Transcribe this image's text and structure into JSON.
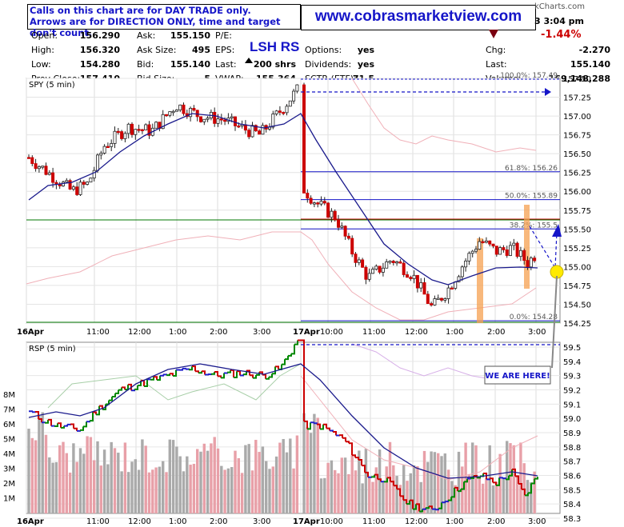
{
  "notice": {
    "line1": "Calls on this chart are for DAY TRADE only.",
    "line2": "Arrows are for DIRECTION ONLY, time and target don't count."
  },
  "site": "www.cobrasmarketview.com",
  "brand": "kCharts.com",
  "symbol": "LSH RS",
  "time": "3  3:04 pm",
  "change_pct": "-1.44%",
  "quote": {
    "col1": [
      {
        "label": "Open:",
        "value": "156.290"
      },
      {
        "label": "High:",
        "value": "156.320"
      },
      {
        "label": "Low:",
        "value": "154.280"
      },
      {
        "label": "Prev Close:",
        "value": "157.410"
      }
    ],
    "col2": [
      {
        "label": "Ask:",
        "value": "155.150"
      },
      {
        "label": "Ask Size:",
        "value": "495"
      },
      {
        "label": "Bid:",
        "value": "155.140"
      },
      {
        "label": "Bid Size:",
        "value": "5"
      }
    ],
    "col3": [
      {
        "label": "P/E:",
        "value": ""
      },
      {
        "label": "EPS:",
        "value": ""
      },
      {
        "label": "Last:",
        "value": "200 shrs"
      },
      {
        "label": "VWAP:",
        "value": "155.364"
      }
    ],
    "col4": [
      {
        "label": "Options:",
        "value": "yes"
      },
      {
        "label": "Dividends:",
        "value": "yes"
      },
      {
        "label": "SCTR (ETF):",
        "value": "71.5"
      }
    ],
    "col5": [
      {
        "label": "Chg:",
        "value": "-2.270"
      },
      {
        "label": "Last:",
        "value": "155.140"
      },
      {
        "label": "Volume:",
        "value": "169,148,288"
      }
    ]
  },
  "colors": {
    "up": "#008800",
    "down": "#cc0000",
    "ma": "#1a1a8c",
    "fib": "#1515c8",
    "orange": "#f5a050",
    "support": "#007700",
    "resist": "#bb0000"
  },
  "chart_data": [
    {
      "type": "candlestick",
      "title": "SPY (5 min)",
      "ylim": [
        154.25,
        157.5
      ],
      "yticks": [
        "157.50",
        "157.25",
        "157.00",
        "156.75",
        "156.50",
        "156.25",
        "156.00",
        "155.75",
        "155.50",
        "155.25",
        "155.00",
        "154.75",
        "154.50",
        "154.25"
      ],
      "xticks": [
        "16Apr",
        "11:00",
        "12:00",
        "1:00",
        "2:00",
        "3:00",
        "17Apr",
        "10:00",
        "11:00",
        "12:00",
        "1:00",
        "2:00",
        "3:00"
      ],
      "fib_levels": [
        {
          "label": "100.0%: 157.49",
          "value": 157.49
        },
        {
          "label": "61.8%: 156.26",
          "value": 156.26
        },
        {
          "label": "50.0%: 155.89",
          "value": 155.89
        },
        {
          "label": "38.2%: 155.5",
          "value": 155.5
        },
        {
          "label": "0.0%: 154.28",
          "value": 154.28
        }
      ],
      "support_line": 155.66,
      "resistance_line": 155.66,
      "annotation": "WE ARE HERE!"
    },
    {
      "type": "line",
      "title": "RSP (5 min)",
      "ylim": [
        58.3,
        59.5
      ],
      "yticks": [
        "59.5",
        "59.4",
        "59.3",
        "59.2",
        "59.1",
        "59.0",
        "58.9",
        "58.8",
        "58.7",
        "58.6",
        "58.5",
        "58.4",
        "58.3"
      ],
      "volume_ticks": [
        "8M",
        "7M",
        "6M",
        "5M",
        "4M",
        "3M",
        "2M",
        "1M"
      ],
      "xticks": [
        "16Apr",
        "11:00",
        "12:00",
        "1:00",
        "2:00",
        "3:00",
        "17Apr",
        "10:00",
        "11:00",
        "12:00",
        "1:00",
        "2:00",
        "3:00"
      ]
    }
  ]
}
